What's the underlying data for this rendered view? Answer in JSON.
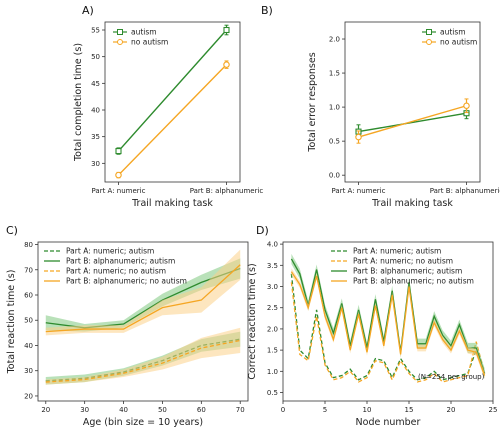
{
  "colors": {
    "autism": "#2e8b2e",
    "no_autism": "#f5a623",
    "autism_band": "#7fc97f",
    "no_autism_band": "#fbd28a"
  },
  "chart_data": [
    {
      "panel": "A)",
      "type": "line",
      "xlabel": "Trail making task",
      "ylabel": "Total completion time (s)",
      "categories": [
        "Part A: numeric",
        "Part B: alphanumeric"
      ],
      "yticks": [
        30,
        35,
        40,
        45,
        50,
        55
      ],
      "ylim": [
        26.5,
        56.5
      ],
      "legend_position": "top-left",
      "series": [
        {
          "name": "autism",
          "key": "autism",
          "marker": "square",
          "values": [
            32.3,
            55.0
          ],
          "err": [
            0.6,
            0.9
          ]
        },
        {
          "name": "no autism",
          "key": "no_autism",
          "marker": "circle",
          "values": [
            27.8,
            48.5
          ],
          "err": [
            0.5,
            0.7
          ]
        }
      ]
    },
    {
      "panel": "B)",
      "type": "line",
      "xlabel": "Trail making task",
      "ylabel": "Total error responses",
      "categories": [
        "Part A: numeric",
        "Part B: alphanumeric"
      ],
      "yticks": [
        0.0,
        0.5,
        1.0,
        1.5,
        2.0
      ],
      "ylim": [
        -0.1,
        2.25
      ],
      "legend_position": "top-right",
      "series": [
        {
          "name": "autism",
          "key": "autism",
          "marker": "square",
          "values": [
            0.64,
            0.91
          ],
          "err": [
            0.1,
            0.08
          ]
        },
        {
          "name": "no autism",
          "key": "no_autism",
          "marker": "circle",
          "values": [
            0.56,
            1.02
          ],
          "err": [
            0.09,
            0.1
          ]
        }
      ]
    },
    {
      "panel": "C)",
      "type": "line",
      "xlabel": "Age (bin size = 10 years)",
      "ylabel": "Total reaction time (s)",
      "xticks": [
        20,
        30,
        40,
        50,
        60,
        70
      ],
      "xlim": [
        18,
        72
      ],
      "yticks": [
        20,
        30,
        40,
        50,
        60,
        70,
        80
      ],
      "ylim": [
        18,
        81
      ],
      "legend_position": "upper-left",
      "x": [
        20,
        30,
        40,
        50,
        60,
        70
      ],
      "series": [
        {
          "name": "Part A: numeric; autism",
          "key": "autism",
          "dash": true,
          "values": [
            26,
            27,
            29.5,
            34,
            40,
            42.5
          ],
          "band": [
            1.5,
            1.5,
            1.5,
            2,
            2.5,
            3
          ]
        },
        {
          "name": "Part B: alphanumeric; autism",
          "key": "autism",
          "dash": false,
          "values": [
            49,
            47,
            48.5,
            58,
            65,
            70.5
          ],
          "band": [
            3,
            1.5,
            1.5,
            2.5,
            3,
            4
          ]
        },
        {
          "name": "Part A: numeric; no autism",
          "key": "no_autism",
          "dash": true,
          "values": [
            25.5,
            26.5,
            29,
            33,
            39,
            42
          ],
          "band": [
            1,
            1,
            1.5,
            2.5,
            4,
            5
          ]
        },
        {
          "name": "Part B: alphanumeric; no autism",
          "key": "no_autism",
          "dash": false,
          "values": [
            45.5,
            46.5,
            46.5,
            55,
            58,
            72
          ],
          "band": [
            1.5,
            1.5,
            1.5,
            3,
            5,
            6
          ]
        }
      ]
    },
    {
      "panel": "D)",
      "type": "line",
      "xlabel": "Node number",
      "ylabel": "Correct reaction time (s)",
      "xticks": [
        0,
        5,
        10,
        15,
        20,
        25
      ],
      "xlim": [
        0,
        25
      ],
      "yticks": [
        0.5,
        1.0,
        1.5,
        2.0,
        2.5,
        3.0,
        3.5,
        4.0
      ],
      "ylim": [
        0.3,
        4.05
      ],
      "legend_position": "upper-right",
      "annotation": "(N=254 per group)",
      "x": [
        1,
        2,
        3,
        4,
        5,
        6,
        7,
        8,
        9,
        10,
        11,
        12,
        13,
        14,
        15,
        16,
        17,
        18,
        19,
        20,
        21,
        22,
        23,
        24
      ],
      "series": [
        {
          "name": "Part A: numeric; autism",
          "key": "autism",
          "dash": true,
          "values": [
            3.3,
            1.5,
            1.3,
            2.45,
            1.2,
            0.85,
            0.9,
            1.05,
            0.8,
            0.9,
            1.3,
            1.25,
            0.85,
            1.3,
            1.0,
            0.8,
            0.85,
            1.0,
            0.8,
            0.85,
            0.9,
            0.95,
            1.5,
            0.9
          ]
        },
        {
          "name": "Part A: numeric; no autism",
          "key": "no_autism",
          "dash": true,
          "values": [
            3.1,
            1.4,
            1.25,
            2.3,
            1.15,
            0.8,
            0.85,
            1.0,
            0.75,
            0.85,
            1.25,
            1.2,
            0.8,
            1.25,
            0.95,
            0.75,
            0.8,
            0.95,
            0.75,
            0.8,
            0.85,
            0.9,
            1.7,
            0.95
          ]
        },
        {
          "name": "Part B: alphanumeric; autism",
          "key": "autism",
          "dash": false,
          "values": [
            3.65,
            3.3,
            2.55,
            3.4,
            2.45,
            1.9,
            2.6,
            1.6,
            2.45,
            1.55,
            2.7,
            1.7,
            2.9,
            1.45,
            3.1,
            1.65,
            1.65,
            2.3,
            1.85,
            1.6,
            2.1,
            1.55,
            1.55,
            0.95
          ],
          "band": 0.12
        },
        {
          "name": "Part B: alphanumeric; no autism",
          "key": "no_autism",
          "dash": false,
          "values": [
            3.35,
            3.05,
            2.5,
            3.25,
            2.3,
            1.75,
            2.5,
            1.5,
            2.35,
            1.45,
            2.55,
            1.6,
            2.8,
            1.4,
            3.0,
            1.55,
            1.55,
            2.15,
            1.75,
            1.5,
            1.95,
            1.5,
            1.45,
            0.9
          ],
          "band": 0.08
        }
      ]
    }
  ]
}
